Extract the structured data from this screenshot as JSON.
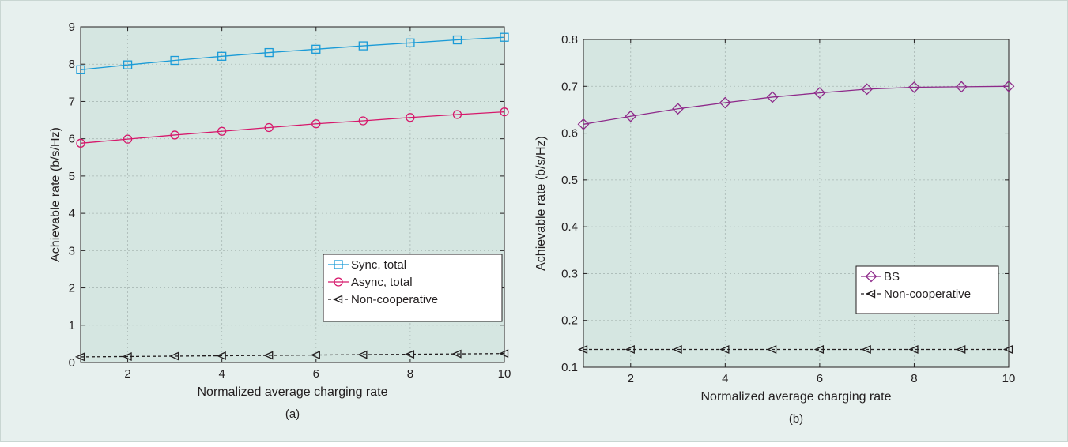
{
  "chart_data": [
    {
      "id": "a",
      "type": "line",
      "caption": "(a)",
      "xlabel": "Normalized average charging rate",
      "ylabel": "Achievable rate (b/s/Hz)",
      "xlim": [
        1,
        10
      ],
      "ylim": [
        0,
        9
      ],
      "xticks": [
        2,
        4,
        6,
        8,
        10
      ],
      "yticks": [
        0,
        1,
        2,
        3,
        4,
        5,
        6,
        7,
        8,
        9
      ],
      "grid": true,
      "legend_position": "lower-right",
      "x": [
        1,
        2,
        3,
        4,
        5,
        6,
        7,
        8,
        9,
        10
      ],
      "series": [
        {
          "name": "Sync, total",
          "color": "#1a9bd7",
          "marker": "square",
          "dash": "solid",
          "values": [
            7.85,
            7.98,
            8.1,
            8.21,
            8.31,
            8.4,
            8.49,
            8.57,
            8.65,
            8.72
          ]
        },
        {
          "name": "Async, total",
          "color": "#d6186b",
          "marker": "circle",
          "dash": "solid",
          "values": [
            5.88,
            5.99,
            6.1,
            6.2,
            6.3,
            6.4,
            6.48,
            6.57,
            6.65,
            6.72
          ]
        },
        {
          "name": "Non-cooperative",
          "color": "#231f20",
          "marker": "triangle-left",
          "dash": "dashed",
          "values": [
            0.15,
            0.16,
            0.17,
            0.18,
            0.19,
            0.2,
            0.21,
            0.22,
            0.23,
            0.24
          ]
        }
      ]
    },
    {
      "id": "b",
      "type": "line",
      "caption": "(b)",
      "xlabel": "Normalized average charging rate",
      "ylabel": "Achievable rate (b/s/Hz)",
      "xlim": [
        1,
        10
      ],
      "ylim": [
        0.1,
        0.8
      ],
      "xticks": [
        2,
        4,
        6,
        8,
        10
      ],
      "yticks": [
        0.1,
        0.2,
        0.3,
        0.4,
        0.5,
        0.6,
        0.7,
        0.8
      ],
      "grid": true,
      "legend_position": "lower-right",
      "x": [
        1,
        2,
        3,
        4,
        5,
        6,
        7,
        8,
        9,
        10
      ],
      "series": [
        {
          "name": "BS",
          "color": "#8e2a8a",
          "marker": "diamond",
          "dash": "solid",
          "values": [
            0.619,
            0.636,
            0.652,
            0.665,
            0.677,
            0.686,
            0.694,
            0.698,
            0.699,
            0.7
          ]
        },
        {
          "name": "Non-cooperative",
          "color": "#231f20",
          "marker": "triangle-left",
          "dash": "dashed",
          "values": [
            0.138,
            0.138,
            0.138,
            0.138,
            0.138,
            0.138,
            0.138,
            0.138,
            0.138,
            0.138
          ]
        }
      ]
    }
  ]
}
